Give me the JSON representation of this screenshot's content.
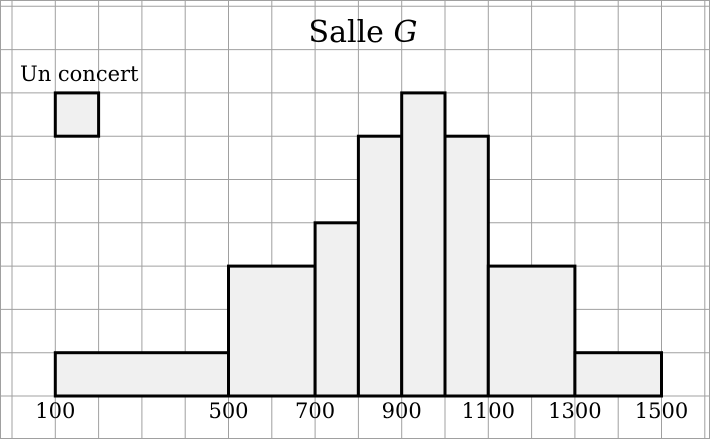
{
  "chart_data": {
    "type": "histogram",
    "title_main": "Salle ",
    "title_var": "G",
    "legend": {
      "label": "Un concert",
      "unit_area": 1
    },
    "x_ticks": [
      100,
      500,
      700,
      900,
      1100,
      1300,
      1500
    ],
    "xlim": [
      0,
      1500
    ],
    "bins": [
      {
        "from": 100,
        "to": 500,
        "height": 1
      },
      {
        "from": 500,
        "to": 700,
        "height": 3
      },
      {
        "from": 700,
        "to": 800,
        "height": 4
      },
      {
        "from": 800,
        "to": 900,
        "height": 6
      },
      {
        "from": 900,
        "to": 1000,
        "height": 7
      },
      {
        "from": 1000,
        "to": 1100,
        "height": 6
      },
      {
        "from": 1100,
        "to": 1300,
        "height": 3
      },
      {
        "from": 1300,
        "to": 1500,
        "height": 1
      }
    ],
    "grid": true,
    "colors": {
      "bar_fill": "#f0f0f0",
      "bar_stroke": "#000000",
      "grid": "#a0a0a0"
    }
  }
}
